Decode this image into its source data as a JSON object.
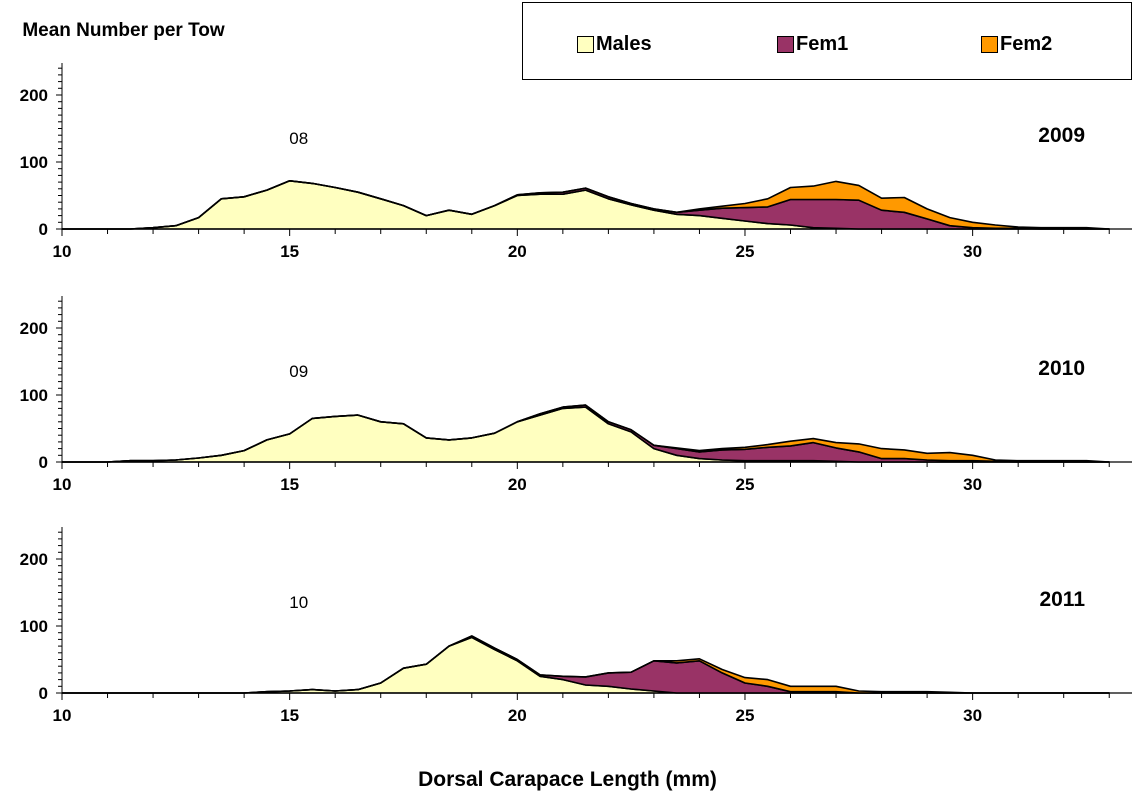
{
  "colors": {
    "males": "#FFFFC0",
    "fem1": "#993366",
    "fem2": "#FF9900",
    "outline": "#000000"
  },
  "chart_data": {
    "type": "area",
    "stacked": true,
    "ylabel": "Mean Number per Tow",
    "xlabel": "Dorsal Carapace Length (mm)",
    "xlim": [
      10,
      33.5
    ],
    "ylim": [
      0,
      240
    ],
    "xticks": [
      10,
      15,
      20,
      25,
      30
    ],
    "yticks": [
      0,
      100,
      200
    ],
    "legend_position": "top-right",
    "legend": [
      "Males",
      "Fem1",
      "Fem2"
    ],
    "x": [
      10,
      10.5,
      11,
      11.5,
      12,
      12.5,
      13,
      13.5,
      14,
      14.5,
      15,
      15.5,
      16,
      16.5,
      17,
      17.5,
      18,
      18.5,
      19,
      19.5,
      20,
      20.5,
      21,
      21.5,
      22,
      22.5,
      23,
      23.5,
      24,
      24.5,
      25,
      25.5,
      26,
      26.5,
      27,
      27.5,
      28,
      28.5,
      29,
      29.5,
      30,
      30.5,
      31,
      31.5,
      32,
      32.5,
      33
    ],
    "panels": [
      {
        "year": "2009",
        "annotation": "08",
        "series": [
          {
            "name": "Males",
            "values": [
              0,
              0,
              0,
              0,
              2,
              5,
              17,
              45,
              48,
              58,
              72,
              68,
              62,
              55,
              45,
              35,
              20,
              28,
              22,
              35,
              50,
              52,
              52,
              58,
              45,
              36,
              28,
              22,
              20,
              16,
              12,
              8,
              6,
              2,
              1,
              0,
              0,
              0,
              0,
              0,
              0,
              0,
              0,
              0,
              0,
              0,
              0
            ]
          },
          {
            "name": "Fem1",
            "values": [
              0,
              0,
              0,
              0,
              0,
              0,
              0,
              0,
              0,
              0,
              0,
              0,
              0,
              0,
              0,
              0,
              0,
              0,
              0,
              0,
              1,
              2,
              3,
              3,
              3,
              2,
              2,
              3,
              8,
              15,
              20,
              25,
              38,
              42,
              43,
              43,
              28,
              25,
              15,
              5,
              2,
              1,
              1,
              0,
              0,
              0,
              0
            ]
          },
          {
            "name": "Fem2",
            "values": [
              0,
              0,
              0,
              0,
              0,
              0,
              0,
              0,
              0,
              0,
              0,
              0,
              0,
              0,
              0,
              0,
              0,
              0,
              0,
              0,
              0,
              0,
              0,
              0,
              0,
              0,
              0,
              0,
              2,
              3,
              6,
              12,
              18,
              20,
              27,
              22,
              18,
              22,
              15,
              12,
              8,
              5,
              2,
              2,
              2,
              2,
              0
            ]
          }
        ]
      },
      {
        "year": "2010",
        "annotation": "09",
        "series": [
          {
            "name": "Males",
            "values": [
              0,
              0,
              0,
              2,
              2,
              3,
              6,
              10,
              17,
              33,
              42,
              65,
              68,
              70,
              60,
              57,
              36,
              33,
              36,
              43,
              60,
              70,
              80,
              82,
              57,
              45,
              20,
              10,
              5,
              3,
              2,
              2,
              2,
              2,
              1,
              0,
              0,
              0,
              0,
              0,
              0,
              0,
              0,
              0,
              0,
              0,
              0
            ]
          },
          {
            "name": "Fem1",
            "values": [
              0,
              0,
              0,
              0,
              0,
              0,
              0,
              0,
              0,
              0,
              0,
              0,
              0,
              0,
              0,
              0,
              0,
              0,
              0,
              0,
              0,
              2,
              2,
              3,
              3,
              3,
              5,
              10,
              10,
              15,
              17,
              20,
              22,
              27,
              20,
              15,
              5,
              5,
              3,
              2,
              2,
              1,
              0,
              0,
              0,
              0,
              0
            ]
          },
          {
            "name": "Fem2",
            "values": [
              0,
              0,
              0,
              0,
              0,
              0,
              0,
              0,
              0,
              0,
              0,
              0,
              0,
              0,
              0,
              0,
              0,
              0,
              0,
              0,
              0,
              0,
              0,
              0,
              0,
              0,
              0,
              1,
              2,
              2,
              3,
              4,
              7,
              6,
              8,
              12,
              15,
              13,
              10,
              12,
              8,
              2,
              2,
              2,
              2,
              2,
              0
            ]
          }
        ]
      },
      {
        "year": "2011",
        "annotation": "10",
        "series": [
          {
            "name": "Males",
            "values": [
              0,
              0,
              0,
              0,
              0,
              0,
              0,
              0,
              0,
              2,
              3,
              5,
              3,
              5,
              15,
              37,
              43,
              70,
              83,
              65,
              48,
              25,
              20,
              12,
              10,
              6,
              3,
              0,
              0,
              0,
              0,
              0,
              0,
              0,
              0,
              0,
              0,
              0,
              0,
              0,
              0,
              0,
              0,
              0,
              0,
              0,
              0
            ]
          },
          {
            "name": "Fem1",
            "values": [
              0,
              0,
              0,
              0,
              0,
              0,
              0,
              0,
              0,
              0,
              0,
              0,
              0,
              0,
              0,
              0,
              0,
              0,
              2,
              2,
              2,
              2,
              5,
              12,
              20,
              25,
              45,
              45,
              48,
              30,
              15,
              10,
              2,
              2,
              2,
              0,
              0,
              0,
              0,
              0,
              0,
              0,
              0,
              0,
              0,
              0,
              0
            ]
          },
          {
            "name": "Fem2",
            "values": [
              0,
              0,
              0,
              0,
              0,
              0,
              0,
              0,
              0,
              0,
              0,
              0,
              0,
              0,
              0,
              0,
              0,
              0,
              0,
              0,
              0,
              0,
              0,
              0,
              0,
              0,
              0,
              3,
              3,
              5,
              8,
              10,
              8,
              8,
              8,
              3,
              2,
              2,
              2,
              1,
              0,
              0,
              0,
              0,
              0,
              0,
              0
            ]
          }
        ]
      }
    ]
  }
}
